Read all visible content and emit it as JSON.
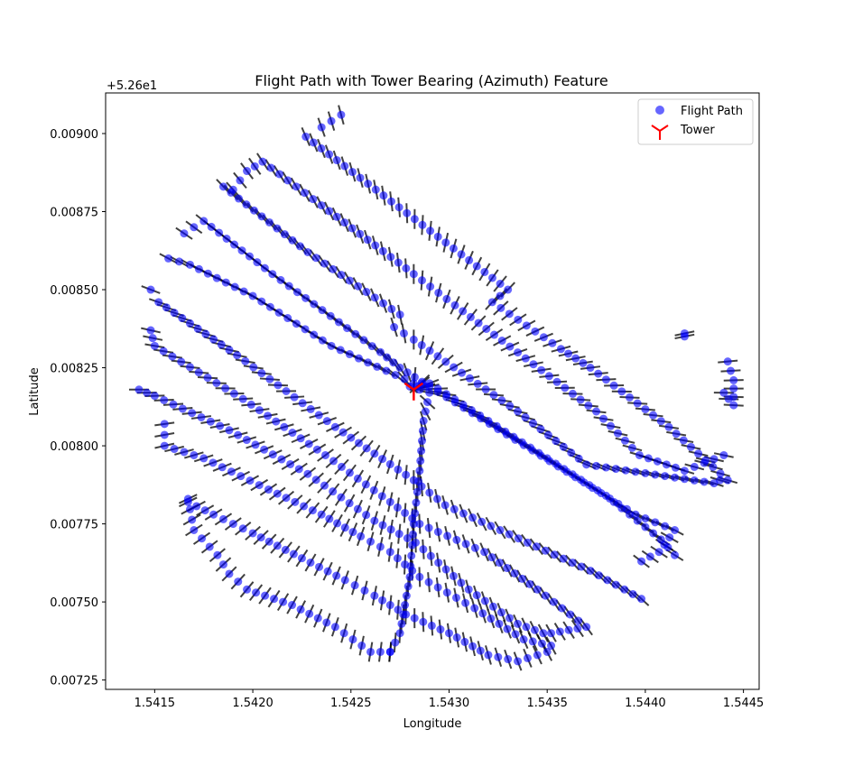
{
  "chart_data": {
    "type": "scatter",
    "title": "Flight Path with Tower Bearing (Azimuth) Feature",
    "xlabel": "Longitude",
    "ylabel": "Latitude",
    "y_offset_label": "+5.26e1",
    "xlim": [
      1.54125,
      1.54458
    ],
    "ylim": [
      0.00722,
      0.00913
    ],
    "xticks": [
      1.5415,
      1.542,
      1.5425,
      1.543,
      1.5435,
      1.544,
      1.5445
    ],
    "xtick_labels": [
      "1.5415",
      "1.5420",
      "1.5425",
      "1.5430",
      "1.5435",
      "1.5440",
      "1.5445"
    ],
    "yticks": [
      0.00725,
      0.0075,
      0.00775,
      0.008,
      0.00825,
      0.0085,
      0.00875,
      0.009
    ],
    "ytick_labels": [
      "0.00725",
      "0.00750",
      "0.00775",
      "0.00800",
      "0.00825",
      "0.00850",
      "0.00875",
      "0.00900"
    ],
    "grid": false,
    "legend": "top-right",
    "series": [
      {
        "name": "Flight Path",
        "color": "#0000ff",
        "marker": "circle",
        "alpha": 0.6,
        "lines": [
          [
            [
              1.54235,
              0.00902
            ],
            [
              1.54245,
              0.00906
            ]
          ],
          [
            [
              1.54227,
              0.00899
            ],
            [
              1.5433,
              0.0085
            ],
            [
              1.54322,
              0.00846
            ],
            [
              1.54357,
              0.00831
            ],
            [
              1.54372,
              0.00825
            ],
            [
              1.54412,
              0.00806
            ],
            [
              1.54442,
              0.00789
            ],
            [
              1.54438,
              0.00789
            ]
          ],
          [
            [
              1.5419,
              0.00882
            ],
            [
              1.54197,
              0.00888
            ],
            [
              1.54205,
              0.00891
            ],
            [
              1.54235,
              0.00877
            ],
            [
              1.54282,
              0.00855
            ],
            [
              1.54303,
              0.00845
            ],
            [
              1.54375,
              0.00811
            ],
            [
              1.54397,
              0.00797
            ],
            [
              1.5442,
              0.00792
            ],
            [
              1.5444,
              0.00797
            ]
          ],
          [
            [
              1.54185,
              0.00883
            ],
            [
              1.54228,
              0.00862
            ],
            [
              1.54275,
              0.00842
            ],
            [
              1.54272,
              0.00838
            ],
            [
              1.54282,
              0.00834
            ],
            [
              1.54335,
              0.00811
            ],
            [
              1.5437,
              0.00794
            ],
            [
              1.54435,
              0.00788
            ]
          ],
          [
            [
              1.54165,
              0.00868
            ],
            [
              1.54175,
              0.00872
            ],
            [
              1.5421,
              0.00855
            ],
            [
              1.54265,
              0.0083
            ],
            [
              1.54275,
              0.00825
            ],
            [
              1.5429,
              0.00819
            ],
            [
              1.54395,
              0.00778
            ],
            [
              1.54415,
              0.00773
            ],
            [
              1.54407,
              0.00766
            ],
            [
              1.54398,
              0.00763
            ]
          ],
          [
            [
              1.54157,
              0.0086
            ],
            [
              1.54168,
              0.00858
            ],
            [
              1.542,
              0.00848
            ],
            [
              1.5424,
              0.00832
            ],
            [
              1.54282,
              0.0082
            ],
            [
              1.5429,
              0.0082
            ],
            [
              1.5432,
              0.00808
            ],
            [
              1.5435,
              0.00796
            ],
            [
              1.5438,
              0.00784
            ],
            [
              1.54408,
              0.0077
            ],
            [
              1.54415,
              0.00765
            ]
          ],
          [
            [
              1.54148,
              0.0085
            ],
            [
              1.54152,
              0.00846
            ],
            [
              1.54192,
              0.00829
            ],
            [
              1.54242,
              0.00806
            ],
            [
              1.54282,
              0.00789
            ],
            [
              1.54298,
              0.00781
            ],
            [
              1.5434,
              0.00769
            ],
            [
              1.54372,
              0.0076
            ],
            [
              1.54398,
              0.00751
            ]
          ],
          [
            [
              1.54148,
              0.00837
            ],
            [
              1.5415,
              0.00832
            ],
            [
              1.54195,
              0.00815
            ],
            [
              1.54237,
              0.00797
            ],
            [
              1.5427,
              0.00782
            ],
            [
              1.54285,
              0.00775
            ],
            [
              1.54318,
              0.00766
            ],
            [
              1.54345,
              0.00754
            ],
            [
              1.5437,
              0.00742
            ],
            [
              1.54352,
              0.0074
            ]
          ],
          [
            [
              1.54142,
              0.00818
            ],
            [
              1.5415,
              0.00816
            ],
            [
              1.54188,
              0.00805
            ],
            [
              1.54228,
              0.00791
            ],
            [
              1.54262,
              0.00776
            ],
            [
              1.54283,
              0.00769
            ],
            [
              1.5431,
              0.00754
            ],
            [
              1.54335,
              0.00743
            ],
            [
              1.54348,
              0.0074
            ]
          ],
          [
            [
              1.54155,
              0.00807
            ],
            [
              1.54155,
              0.008
            ],
            [
              1.54175,
              0.00796
            ],
            [
              1.54208,
              0.00786
            ],
            [
              1.54235,
              0.00778
            ],
            [
              1.54255,
              0.00771
            ],
            [
              1.5427,
              0.00766
            ],
            [
              1.54285,
              0.00758
            ],
            [
              1.54313,
              0.00748
            ],
            [
              1.54338,
              0.00738
            ],
            [
              1.54352,
              0.00736
            ]
          ],
          [
            [
              1.54167,
              0.00782
            ],
            [
              1.5418,
              0.00778
            ],
            [
              1.542,
              0.00772
            ],
            [
              1.54225,
              0.00764
            ],
            [
              1.54247,
              0.00757
            ],
            [
              1.54262,
              0.00752
            ],
            [
              1.54278,
              0.00746
            ],
            [
              1.543,
              0.0074
            ],
            [
              1.5432,
              0.00733
            ],
            [
              1.54335,
              0.00731
            ],
            [
              1.5435,
              0.00734
            ]
          ],
          [
            [
              1.54167,
              0.00783
            ],
            [
              1.5417,
              0.00773
            ],
            [
              1.54182,
              0.00765
            ],
            [
              1.54188,
              0.00759
            ],
            [
              1.54197,
              0.00754
            ],
            [
              1.5422,
              0.00749
            ],
            [
              1.54242,
              0.00742
            ],
            [
              1.5426,
              0.00734
            ],
            [
              1.5427,
              0.00734
            ]
          ],
          [
            [
              1.5427,
              0.00734
            ],
            [
              1.54275,
              0.0074
            ],
            [
              1.5428,
              0.00758
            ],
            [
              1.54282,
              0.00775
            ],
            [
              1.54285,
              0.00792
            ],
            [
              1.54287,
              0.00808
            ],
            [
              1.5429,
              0.00817
            ],
            [
              1.5428,
              0.00819
            ],
            [
              1.54288,
              0.00819
            ]
          ],
          [
            [
              1.5442,
              0.00836
            ],
            [
              1.5442,
              0.00835
            ]
          ],
          [
            [
              1.54442,
              0.00827
            ],
            [
              1.54445,
              0.00821
            ],
            [
              1.54445,
              0.00813
            ],
            [
              1.5444,
              0.00817
            ]
          ]
        ]
      },
      {
        "name": "Tower",
        "color": "#ff0000",
        "marker": "tri_down",
        "points": [
          [
            1.54282,
            0.00818
          ]
        ]
      }
    ],
    "bearing_ticks": {
      "color": "#000000",
      "description": "short line segments at each flight point oriented toward the tower azimuth"
    }
  }
}
